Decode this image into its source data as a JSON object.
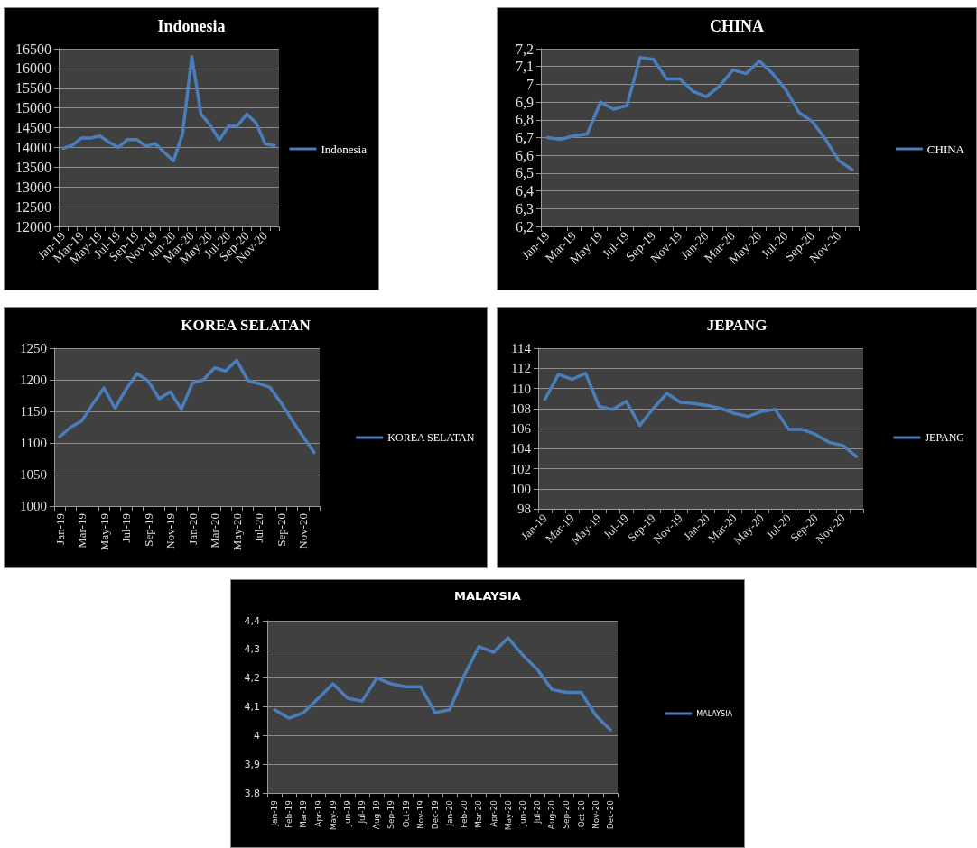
{
  "chart_data": [
    {
      "type": "line",
      "title": "Indonesia",
      "categories": [
        "Jan-19",
        null,
        "Mar-19",
        null,
        "May-19",
        null,
        "Jul-19",
        null,
        "Sep-19",
        null,
        "Nov-19",
        null,
        "Jan-20",
        null,
        "Mar-20",
        null,
        "May-20",
        null,
        "Jul-20",
        null,
        "Sep-20",
        null,
        "Nov-20",
        null
      ],
      "series": [
        {
          "name": "Indonesia",
          "color": "#4a7ebb",
          "values": [
            13980,
            14060,
            14240,
            14240,
            14290,
            14130,
            14000,
            14200,
            14200,
            14030,
            14100,
            13880,
            13660,
            14350,
            16300,
            14840,
            14570,
            14190,
            14540,
            14560,
            14840,
            14620,
            14090,
            14050
          ]
        }
      ],
      "ylim": [
        12000,
        16500
      ],
      "yticks": [
        12000,
        12500,
        13000,
        13500,
        14000,
        14500,
        15000,
        15500,
        16000,
        16500
      ],
      "grid": "y",
      "legend": "right"
    },
    {
      "type": "line",
      "title": "CHINA",
      "categories": [
        "Jan-19",
        null,
        "Mar-19",
        null,
        "May-19",
        null,
        "Jul-19",
        null,
        "Sep-19",
        null,
        "Nov-19",
        null,
        "Jan-20",
        null,
        "Mar-20",
        null,
        "May-20",
        null,
        "Jul-20",
        null,
        "Sep-20",
        null,
        "Nov-20",
        null
      ],
      "series": [
        {
          "name": "CHINA",
          "color": "#4a7ebb",
          "values": [
            6.7,
            6.69,
            6.71,
            6.72,
            6.9,
            6.86,
            6.88,
            7.15,
            7.14,
            7.03,
            7.03,
            6.96,
            6.93,
            6.99,
            7.08,
            7.06,
            7.13,
            7.06,
            6.97,
            6.84,
            6.79,
            6.69,
            6.57,
            6.52
          ]
        }
      ],
      "ylim": [
        6.2,
        7.2
      ],
      "yticks": [
        {
          "value": 6.2,
          "label": "6,2"
        },
        {
          "value": 6.3,
          "label": "6,3"
        },
        {
          "value": 6.4,
          "label": "6,4"
        },
        {
          "value": 6.5,
          "label": "6,5"
        },
        {
          "value": 6.6,
          "label": "6,6"
        },
        {
          "value": 6.7,
          "label": "6,7"
        },
        {
          "value": 6.8,
          "label": "6,8"
        },
        {
          "value": 6.9,
          "label": "6,9"
        },
        7,
        {
          "value": 7.1,
          "label": "7,1"
        },
        {
          "value": 7.2,
          "label": "7,2"
        }
      ],
      "grid": "y",
      "legend": "right"
    },
    {
      "type": "line",
      "title": "KOREA SELATAN",
      "categories": [
        "Jan-19",
        null,
        "Mar-19",
        null,
        "May-19",
        null,
        "Jul-19",
        null,
        "Sep-19",
        null,
        "Nov-19",
        null,
        "Jan-20",
        null,
        "Mar-20",
        null,
        "May-20",
        null,
        "Jul-20",
        null,
        "Sep-20",
        null,
        "Nov-20",
        null
      ],
      "series": [
        {
          "name": "KOREA SELATAN",
          "color": "#4a7ebb",
          "values": [
            1110,
            1125,
            1135,
            1162,
            1187,
            1155,
            1185,
            1210,
            1198,
            1170,
            1181,
            1153,
            1195,
            1200,
            1219,
            1214,
            1231,
            1199,
            1194,
            1188,
            1164,
            1136,
            1110,
            1085
          ]
        }
      ],
      "ylim": [
        1000,
        1250
      ],
      "yticks": [
        1000,
        1050,
        1100,
        1150,
        1200,
        1250
      ],
      "grid": "y",
      "legend": "right"
    },
    {
      "type": "line",
      "title": "JEPANG",
      "categories": [
        "Jan-19",
        null,
        "Mar-19",
        null,
        "May-19",
        null,
        "Jul-19",
        null,
        "Sep-19",
        null,
        "Nov-19",
        null,
        "Jan-20",
        null,
        "Mar-20",
        null,
        "May-20",
        null,
        "Jul-20",
        null,
        "Sep-20",
        null,
        "Nov-20",
        null
      ],
      "series": [
        {
          "name": "JEPANG",
          "color": "#4a7ebb",
          "values": [
            108.9,
            111.4,
            110.9,
            111.5,
            108.2,
            107.9,
            108.7,
            106.3,
            108.0,
            109.5,
            108.6,
            108.5,
            108.3,
            108.0,
            107.5,
            107.2,
            107.7,
            107.9,
            105.9,
            105.9,
            105.4,
            104.6,
            104.3,
            103.2
          ]
        }
      ],
      "ylim": [
        98,
        114
      ],
      "yticks": [
        98,
        100,
        102,
        104,
        106,
        108,
        110,
        112,
        114
      ],
      "grid": "y",
      "legend": "right"
    },
    {
      "type": "line",
      "title": "MALAYSIA",
      "categories": [
        "Jan-19",
        "Feb-19",
        "Mar-19",
        "Apr-19",
        "May-19",
        "Jun-19",
        "Jul-19",
        "Aug-19",
        "Sep-19",
        "Oct-19",
        "Nov-19",
        "Dec-19",
        "Jan-20",
        "Feb-20",
        "Mar-20",
        "Apr-20",
        "May-20",
        "Jun-20",
        "Jul-20",
        "Aug-20",
        "Sep-20",
        "Oct-20",
        "Nov-20",
        "Dec-20"
      ],
      "series": [
        {
          "name": "MALAYSIA",
          "color": "#4a7ebb",
          "values": [
            4.09,
            4.06,
            4.08,
            4.13,
            4.18,
            4.13,
            4.12,
            4.2,
            4.18,
            4.17,
            4.17,
            4.08,
            4.09,
            4.21,
            4.31,
            4.29,
            4.34,
            4.28,
            4.23,
            4.16,
            4.15,
            4.15,
            4.07,
            4.02
          ]
        }
      ],
      "ylim": [
        3.8,
        4.4
      ],
      "yticks": [
        {
          "value": 3.8,
          "label": "3,8"
        },
        {
          "value": 3.9,
          "label": "3,9"
        },
        4,
        {
          "value": 4.1,
          "label": "4,1"
        },
        {
          "value": 4.2,
          "label": "4,2"
        },
        {
          "value": 4.3,
          "label": "4,3"
        },
        {
          "value": 4.4,
          "label": "4,4"
        }
      ],
      "grid": "y",
      "legend": "right"
    }
  ]
}
